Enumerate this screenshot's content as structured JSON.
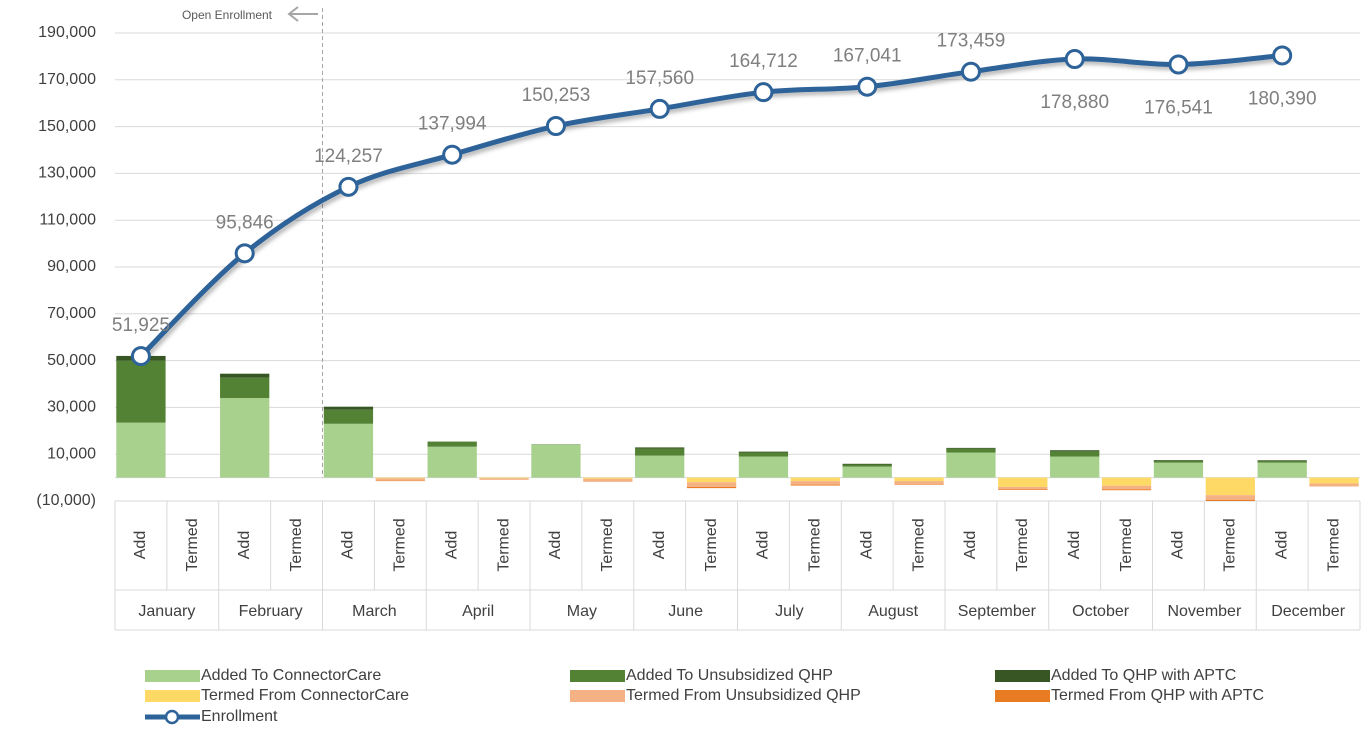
{
  "chart_data": {
    "type": "combo",
    "annotation": "Open Enrollment",
    "groups": [
      "January",
      "February",
      "March",
      "April",
      "May",
      "June",
      "July",
      "August",
      "September",
      "October",
      "November",
      "December"
    ],
    "categories": [
      "Add",
      "Termed",
      "Add",
      "Termed",
      "Add",
      "Termed",
      "Add",
      "Termed",
      "Add",
      "Termed",
      "Add",
      "Termed",
      "Add",
      "Termed",
      "Add",
      "Termed",
      "Add",
      "Termed",
      "Add",
      "Termed",
      "Add",
      "Termed",
      "Add",
      "Termed"
    ],
    "ylim": [
      -10000,
      190000
    ],
    "yticks": [
      {
        "value": -10000,
        "label": "(10,000)"
      },
      {
        "value": 10000,
        "label": "10,000"
      },
      {
        "value": 30000,
        "label": "30,000"
      },
      {
        "value": 50000,
        "label": "50,000"
      },
      {
        "value": 70000,
        "label": "70,000"
      },
      {
        "value": 90000,
        "label": "90,000"
      },
      {
        "value": 110000,
        "label": "110,000"
      },
      {
        "value": 130000,
        "label": "130,000"
      },
      {
        "value": 150000,
        "label": "150,000"
      },
      {
        "value": 170000,
        "label": "170,000"
      },
      {
        "value": 190000,
        "label": "190,000"
      }
    ],
    "grid": true,
    "series": [
      {
        "name": "Added To ConnectorCare",
        "color": "#a9d18e",
        "values": [
          23500,
          null,
          34000,
          null,
          23000,
          null,
          13200,
          null,
          14000,
          null,
          9400,
          null,
          9000,
          null,
          4700,
          null,
          10700,
          null,
          9000,
          null,
          6400,
          null,
          6400,
          null
        ]
      },
      {
        "name": "Added To Unsubsidized QHP",
        "color": "#548235",
        "values": [
          26500,
          null,
          8700,
          null,
          6000,
          null,
          2200,
          null,
          200,
          null,
          3000,
          null,
          1700,
          null,
          900,
          null,
          1700,
          null,
          2200,
          null,
          800,
          null,
          700,
          null
        ]
      },
      {
        "name": "Added To QHP with APTC",
        "color": "#375623",
        "values": [
          2000,
          null,
          1700,
          null,
          1300,
          null,
          0,
          null,
          0,
          null,
          500,
          null,
          400,
          null,
          300,
          null,
          300,
          null,
          500,
          null,
          300,
          null,
          300,
          null
        ]
      },
      {
        "name": "Termed From ConnectorCare",
        "color": "#ffd966",
        "values": [
          null,
          0,
          null,
          0,
          null,
          -300,
          null,
          -300,
          null,
          -500,
          null,
          -2000,
          null,
          -1500,
          null,
          -1500,
          null,
          -4000,
          null,
          -3500,
          null,
          -7500,
          null,
          -2500
        ]
      },
      {
        "name": "Termed From Unsubsidized QHP",
        "color": "#f4b183",
        "values": [
          null,
          0,
          null,
          0,
          null,
          -1000,
          null,
          -500,
          null,
          -1000,
          null,
          -2000,
          null,
          -1500,
          null,
          -1200,
          null,
          -1000,
          null,
          -1500,
          null,
          -2000,
          null,
          -1000
        ]
      },
      {
        "name": "Termed From QHP with APTC",
        "color": "#e97b22",
        "values": [
          null,
          0,
          null,
          0,
          null,
          -200,
          null,
          -100,
          null,
          -200,
          null,
          -500,
          null,
          -400,
          null,
          -300,
          null,
          -300,
          null,
          -400,
          null,
          -500,
          null,
          -200
        ]
      }
    ],
    "line": {
      "name": "Enrollment",
      "color": "#2e6399",
      "values": [
        51925,
        95846,
        124257,
        137994,
        150253,
        157560,
        164712,
        167041,
        173459,
        178880,
        176541,
        180390
      ],
      "value_labels": [
        "51,925",
        "95,846",
        "124,257",
        "137,994",
        "150,253",
        "157,560",
        "164,712",
        "167,041",
        "173,459",
        "178,880",
        "176,541",
        "180,390"
      ]
    }
  }
}
